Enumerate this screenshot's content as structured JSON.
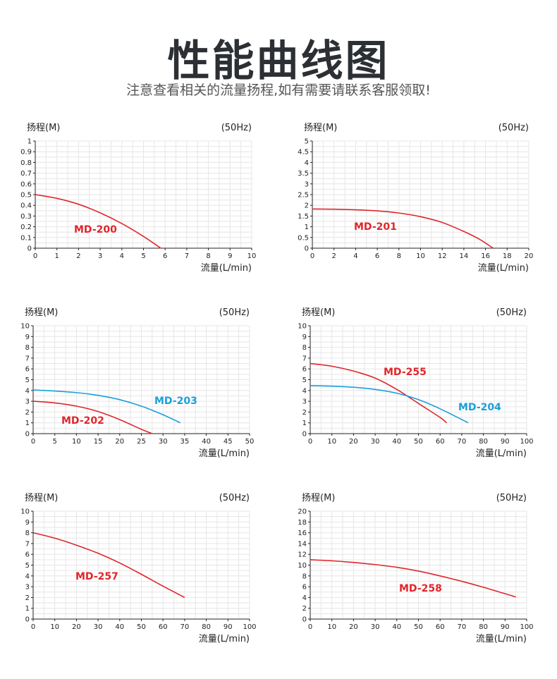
{
  "header": {
    "title": "性能曲线图",
    "subtitle": "注意查看相关的流量扬程,如有需要请联系客服领取!"
  },
  "chart_data": [
    {
      "type": "line",
      "ylabel": "扬程(M)",
      "xlabel": "流量(L/min)",
      "freq": "(50Hz)",
      "xlim": [
        0,
        10
      ],
      "ylim": [
        0,
        1
      ],
      "xticks": [
        "0",
        "1",
        "2",
        "3",
        "4",
        "5",
        "6",
        "7",
        "8",
        "9",
        "10"
      ],
      "yticks": [
        "0",
        "0.1",
        "0.2",
        "0.3",
        "0.4",
        "0.5",
        "0.6",
        "0.7",
        "0.8",
        "0.9",
        "1"
      ],
      "grid": true,
      "series": [
        {
          "name": "MD-200",
          "color": "#e0262b",
          "x": [
            0,
            1,
            2,
            3,
            4,
            5,
            5.8
          ],
          "y": [
            0.5,
            0.465,
            0.41,
            0.33,
            0.23,
            0.11,
            0
          ]
        }
      ]
    },
    {
      "type": "line",
      "ylabel": "扬程(M)",
      "xlabel": "流量(L/min)",
      "freq": "(50Hz)",
      "xlim": [
        0,
        20
      ],
      "ylim": [
        0,
        5
      ],
      "xticks": [
        "0",
        "2",
        "4",
        "6",
        "8",
        "10",
        "12",
        "14",
        "16",
        "18",
        "20"
      ],
      "yticks": [
        "0",
        "0.5",
        "1",
        "1.5",
        "2",
        "2.5",
        "3",
        "3.5",
        "4",
        "4.5",
        "5"
      ],
      "grid": true,
      "series": [
        {
          "name": "MD-201",
          "color": "#e0262b",
          "x": [
            0,
            2,
            4,
            6,
            8,
            10,
            12,
            14,
            15.5,
            16.7
          ],
          "y": [
            1.83,
            1.82,
            1.79,
            1.74,
            1.64,
            1.47,
            1.2,
            0.78,
            0.4,
            0
          ]
        }
      ]
    },
    {
      "type": "line",
      "ylabel": "扬程(M)",
      "xlabel": "流量(L/min)",
      "freq": "(50Hz)",
      "xlim": [
        0,
        50
      ],
      "ylim": [
        0,
        10
      ],
      "xticks": [
        "0",
        "5",
        "10",
        "15",
        "20",
        "25",
        "30",
        "35",
        "40",
        "45",
        "50"
      ],
      "yticks": [
        "0",
        "1",
        "2",
        "3",
        "4",
        "5",
        "6",
        "7",
        "8",
        "9",
        "10"
      ],
      "grid": true,
      "series": [
        {
          "name": "MD-203",
          "color": "#1a9fdc",
          "x": [
            0,
            5,
            10,
            15,
            20,
            25,
            30,
            34
          ],
          "y": [
            4.05,
            3.95,
            3.8,
            3.55,
            3.15,
            2.55,
            1.75,
            1.0
          ]
        },
        {
          "name": "MD-202",
          "color": "#e0262b",
          "x": [
            0,
            5,
            10,
            15,
            20,
            25,
            27.5
          ],
          "y": [
            3.0,
            2.85,
            2.55,
            2.05,
            1.3,
            0.4,
            0
          ]
        }
      ]
    },
    {
      "type": "line",
      "ylabel": "扬程(M)",
      "xlabel": "流量(L/min)",
      "freq": "(50Hz)",
      "xlim": [
        0,
        100
      ],
      "ylim": [
        0,
        10
      ],
      "xticks": [
        "0",
        "10",
        "20",
        "30",
        "40",
        "50",
        "60",
        "70",
        "80",
        "90",
        "100"
      ],
      "yticks": [
        "0",
        "1",
        "2",
        "3",
        "4",
        "5",
        "6",
        "7",
        "8",
        "9",
        "10"
      ],
      "grid": true,
      "series": [
        {
          "name": "MD-255",
          "color": "#e0262b",
          "x": [
            0,
            10,
            20,
            30,
            40,
            50,
            60,
            63
          ],
          "y": [
            6.5,
            6.25,
            5.8,
            5.15,
            4.1,
            2.8,
            1.5,
            1.0
          ]
        },
        {
          "name": "MD-204",
          "color": "#1a9fdc",
          "x": [
            0,
            10,
            20,
            30,
            40,
            50,
            60,
            73
          ],
          "y": [
            4.45,
            4.4,
            4.3,
            4.1,
            3.75,
            3.15,
            2.3,
            1.0
          ]
        }
      ]
    },
    {
      "type": "line",
      "ylabel": "扬程(M)",
      "xlabel": "流量(L/min)",
      "freq": "(50Hz)",
      "xlim": [
        0,
        100
      ],
      "ylim": [
        0,
        10
      ],
      "xticks": [
        "0",
        "10",
        "20",
        "30",
        "40",
        "50",
        "60",
        "70",
        "80",
        "90",
        "100"
      ],
      "yticks": [
        "0",
        "1",
        "2",
        "3",
        "4",
        "5",
        "6",
        "7",
        "8",
        "9",
        "10"
      ],
      "grid": true,
      "series": [
        {
          "name": "MD-257",
          "color": "#e0262b",
          "x": [
            0,
            10,
            20,
            30,
            40,
            50,
            60,
            70
          ],
          "y": [
            8.0,
            7.5,
            6.85,
            6.1,
            5.2,
            4.15,
            3.05,
            2.0
          ]
        }
      ]
    },
    {
      "type": "line",
      "ylabel": "扬程(M)",
      "xlabel": "流量(L/min)",
      "freq": "(50Hz)",
      "xlim": [
        0,
        100
      ],
      "ylim": [
        0,
        20
      ],
      "xticks": [
        "0",
        "10",
        "20",
        "30",
        "40",
        "50",
        "60",
        "70",
        "80",
        "90",
        "100"
      ],
      "yticks": [
        "0",
        "2",
        "4",
        "6",
        "8",
        "10",
        "12",
        "14",
        "16",
        "18",
        "20"
      ],
      "grid": true,
      "series": [
        {
          "name": "MD-258",
          "color": "#e0262b",
          "x": [
            0,
            10,
            20,
            30,
            40,
            50,
            60,
            70,
            80,
            90,
            95
          ],
          "y": [
            11.0,
            10.8,
            10.5,
            10.1,
            9.6,
            8.9,
            8.0,
            7.0,
            5.9,
            4.7,
            4.1
          ]
        }
      ]
    }
  ]
}
